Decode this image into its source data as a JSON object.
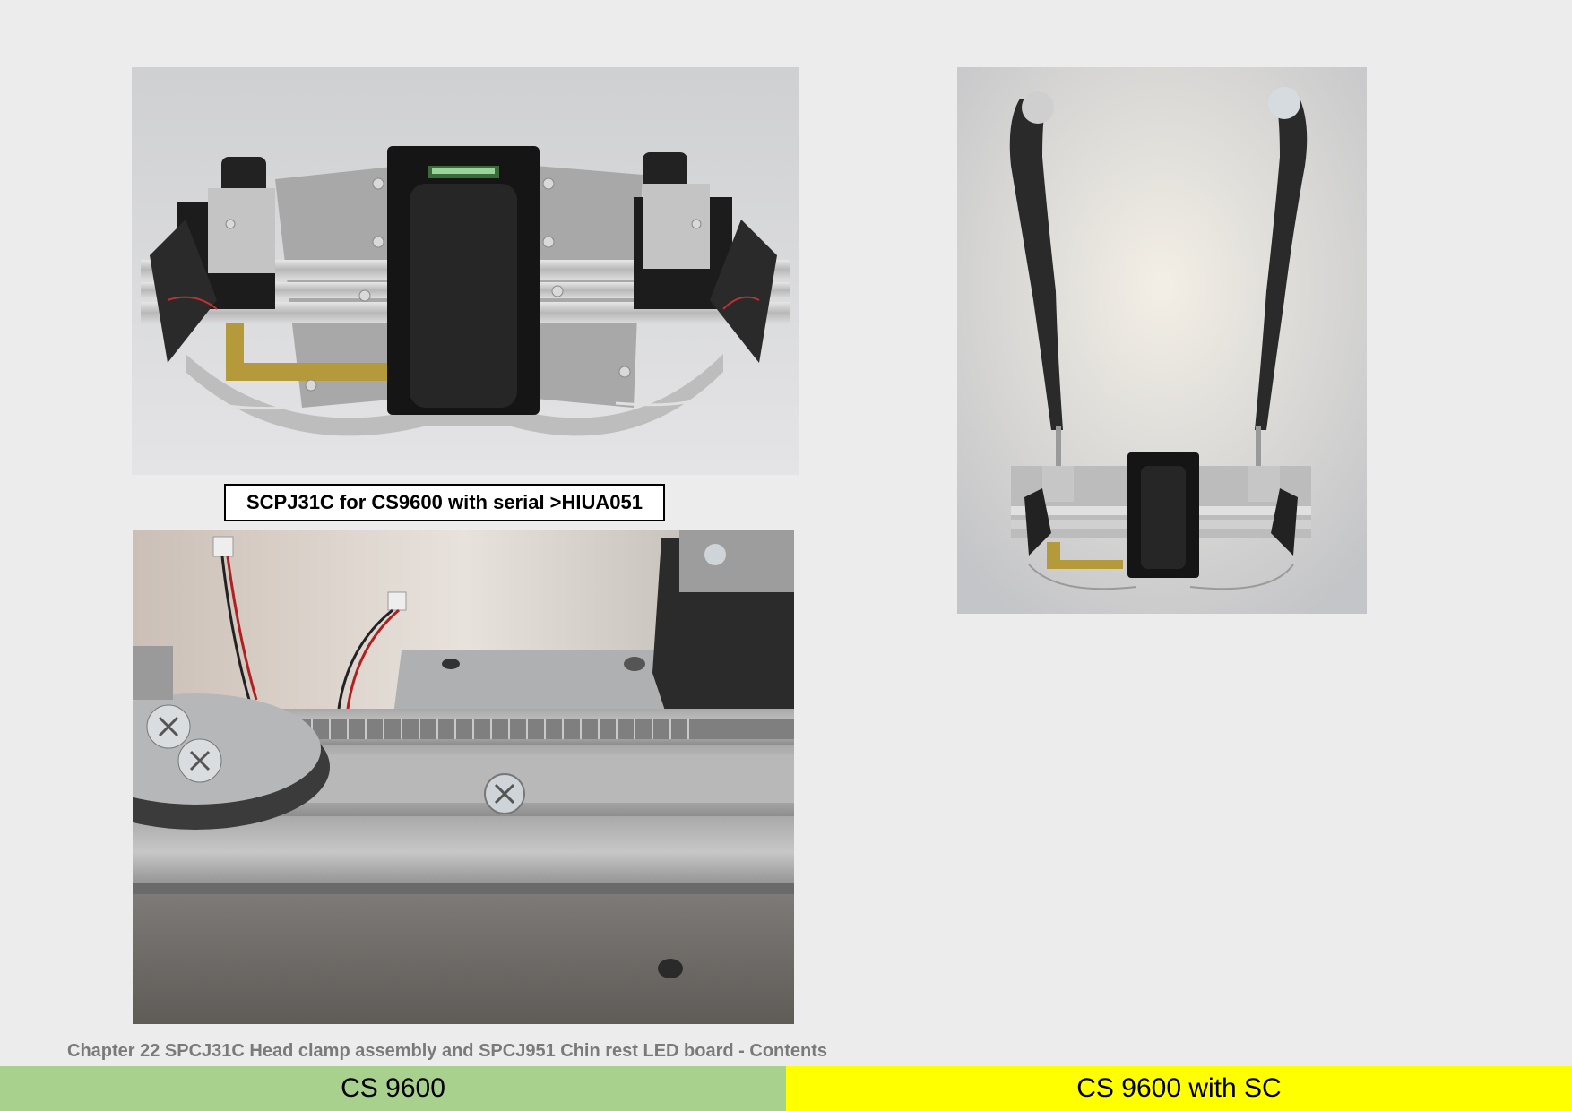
{
  "caption": "SCPJ31C for CS9600 with serial >HIUA051",
  "footer": {
    "chapter_title": "Chapter 22 SPCJ31C Head clamp assembly and SPCJ951 Chin rest LED board - Contents"
  },
  "nav": {
    "left_label": "CS 9600",
    "right_label": "CS 9600 with SC",
    "left_color": "#a9d18e",
    "right_color": "#ffff00"
  }
}
